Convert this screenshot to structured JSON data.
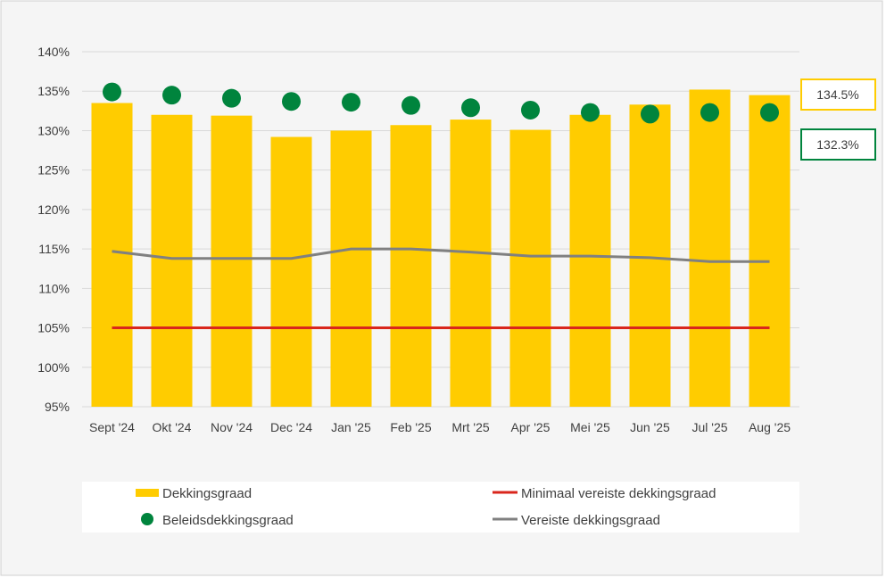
{
  "chart_data": {
    "type": "bar",
    "title": "",
    "xlabel": "",
    "ylabel": "",
    "ylim": [
      95,
      140
    ],
    "yticks": [
      "95%",
      "100%",
      "105%",
      "110%",
      "115%",
      "120%",
      "125%",
      "130%",
      "135%",
      "140%"
    ],
    "ytick_values": [
      95,
      100,
      105,
      110,
      115,
      120,
      125,
      130,
      135,
      140
    ],
    "grid": true,
    "legend_position": "bottom",
    "categories": [
      "Sept '24",
      "Okt '24",
      "Nov '24",
      "Dec '24",
      "Jan '25",
      "Feb '25",
      "Mrt '25",
      "Apr '25",
      "Mei '25",
      "Jun '25",
      "Jul '25",
      "Aug '25"
    ],
    "series": [
      {
        "name": "Dekkingsgraad",
        "kind": "bar",
        "color": "#FFCC00",
        "values": [
          133.5,
          132.0,
          131.9,
          129.2,
          130.0,
          130.7,
          131.4,
          130.1,
          132.0,
          133.3,
          135.2,
          134.5
        ]
      },
      {
        "name": "Beleidsdekkingsgraad",
        "kind": "scatter",
        "color": "#00843D",
        "values": [
          134.9,
          134.5,
          134.1,
          133.7,
          133.6,
          133.2,
          132.9,
          132.6,
          132.3,
          132.1,
          132.3,
          132.3
        ]
      },
      {
        "name": "Minimaal vereiste dekkingsgraad",
        "kind": "line",
        "color": "#D9261C",
        "values": [
          105,
          105,
          105,
          105,
          105,
          105,
          105,
          105,
          105,
          105,
          105,
          105
        ]
      },
      {
        "name": "Vereiste dekkingsgraad",
        "kind": "line",
        "color": "#808080",
        "values": [
          114.7,
          113.8,
          113.8,
          113.8,
          115.0,
          115.0,
          114.6,
          114.1,
          114.1,
          113.9,
          113.4,
          113.4
        ]
      }
    ],
    "annotations": [
      {
        "text": "134.5%",
        "series": "Dekkingsgraad",
        "value": 134.5,
        "border": "#FFCC00"
      },
      {
        "text": "132.3%",
        "series": "Beleidsdekkingsgraad",
        "value": 132.3,
        "border": "#00843D"
      }
    ]
  }
}
